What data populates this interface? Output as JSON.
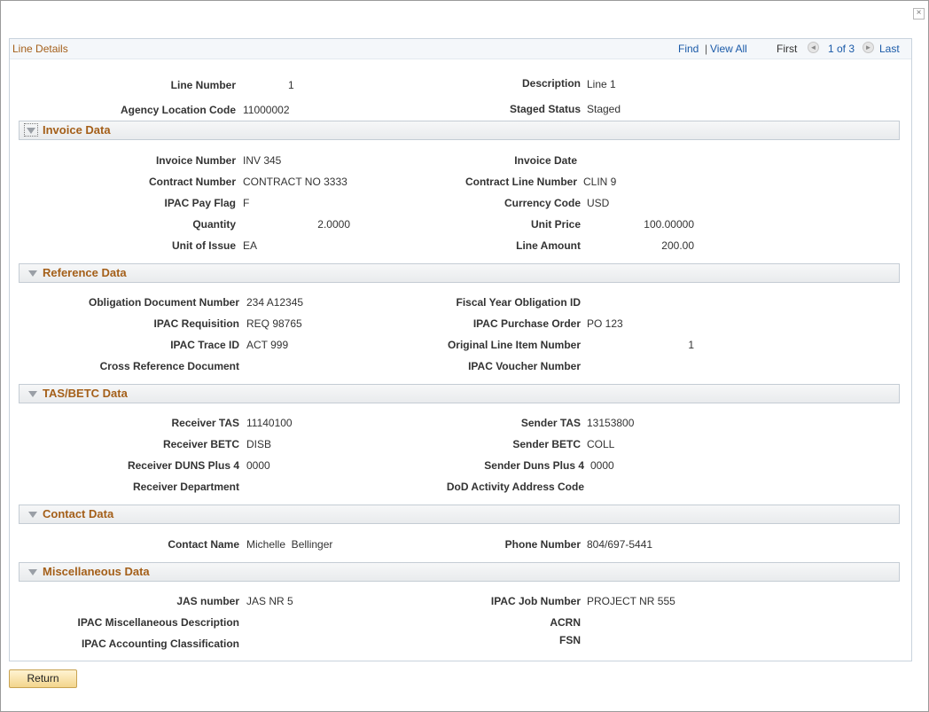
{
  "window": {
    "close_glyph": "×",
    "close_icon": "close-icon"
  },
  "panel": {
    "title": "Line Details",
    "nav": {
      "find": "Find",
      "sep": "|",
      "view_all": "View All",
      "first": "First",
      "prev_icon": "prev-arrow-icon",
      "prev_glyph": "◄",
      "position": "1 of 3",
      "next_icon": "next-arrow-icon",
      "next_glyph": "►",
      "last": "Last"
    }
  },
  "line": {
    "line_number_label": "Line Number",
    "line_number": "1",
    "description_label": "Description",
    "description": "Line 1",
    "agency_location_code_label": "Agency Location Code",
    "agency_location_code": "11000002",
    "staged_status_label": "Staged Status",
    "staged_status": "Staged"
  },
  "invoice": {
    "title": "Invoice Data",
    "invoice_number_label": "Invoice Number",
    "invoice_number": "INV 345",
    "invoice_date_label": "Invoice Date",
    "contract_number_label": "Contract Number",
    "contract_number": "CONTRACT NO 3333",
    "contract_line_number_label": "Contract Line Number",
    "contract_line_number": "CLIN 9",
    "ipac_pay_flag_label": "IPAC Pay Flag",
    "ipac_pay_flag": "F",
    "currency_code_label": "Currency Code",
    "currency_code": "USD",
    "quantity_label": "Quantity",
    "quantity": "2.0000",
    "unit_price_label": "Unit Price",
    "unit_price": "100.00000",
    "unit_of_issue_label": "Unit of Issue",
    "unit_of_issue": "EA",
    "line_amount_label": "Line Amount",
    "line_amount": "200.00"
  },
  "reference": {
    "title": "Reference Data",
    "obligation_document_number_label": "Obligation Document Number",
    "obligation_document_number": "234 A12345",
    "fiscal_year_obligation_id_label": "Fiscal Year Obligation ID",
    "ipac_requisition_label": "IPAC Requisition",
    "ipac_requisition": "REQ 98765",
    "ipac_purchase_order_label": "IPAC Purchase Order",
    "ipac_purchase_order": "PO 123",
    "ipac_trace_id_label": "IPAC Trace ID",
    "ipac_trace_id": "ACT 999",
    "original_line_item_number_label": "Original Line Item Number",
    "original_line_item_number": "1",
    "cross_reference_document_label": "Cross Reference Document",
    "ipac_voucher_number_label": "IPAC Voucher Number"
  },
  "tas": {
    "title": "TAS/BETC Data",
    "receiver_tas_label": "Receiver TAS",
    "receiver_tas": "11140100",
    "sender_tas_label": "Sender TAS",
    "sender_tas": "13153800",
    "receiver_betc_label": "Receiver BETC",
    "receiver_betc": "DISB",
    "sender_betc_label": "Sender BETC",
    "sender_betc": "COLL",
    "receiver_duns_label": "Receiver DUNS Plus 4",
    "receiver_duns": "0000",
    "sender_duns_label": "Sender Duns Plus 4",
    "sender_duns": "0000",
    "receiver_department_label": "Receiver Department",
    "dod_activity_label": "DoD Activity Address Code"
  },
  "contact": {
    "title": "Contact Data",
    "contact_name_label": "Contact Name",
    "contact_name": "Michelle  Bellinger",
    "phone_number_label": "Phone Number",
    "phone_number": "804/697-5441"
  },
  "misc": {
    "title": "Miscellaneous Data",
    "jas_number_label": "JAS number",
    "jas_number": "JAS NR 5",
    "ipac_job_number_label": "IPAC Job Number",
    "ipac_job_number": "PROJECT NR 555",
    "ipac_misc_description_label": "IPAC Miscellaneous Description",
    "acrn_label": "ACRN",
    "ipac_accounting_classification_label": "IPAC Accounting Classification",
    "fsn_label": "FSN"
  },
  "actions": {
    "return_label": "Return"
  },
  "colors": {
    "accent": "#a45f19",
    "link": "#1a5aa8",
    "button": "#f3d58c"
  }
}
